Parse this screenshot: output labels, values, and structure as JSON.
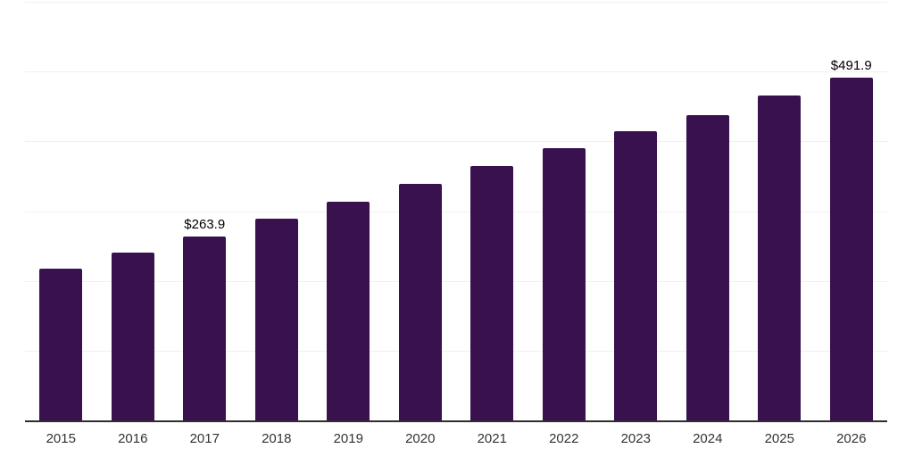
{
  "chart_data": {
    "type": "bar",
    "title": "",
    "xlabel": "",
    "ylabel": "",
    "categories": [
      "2015",
      "2016",
      "2017",
      "2018",
      "2019",
      "2020",
      "2021",
      "2022",
      "2023",
      "2024",
      "2025",
      "2026"
    ],
    "values": [
      216.9,
      240.3,
      263.9,
      289.5,
      313.9,
      339.1,
      364.8,
      389.9,
      414.0,
      437.9,
      465.2,
      491.9
    ],
    "data_labels": [
      "",
      "",
      "$263.9",
      "",
      "",
      "",
      "",
      "",
      "",
      "",
      "",
      "$491.9"
    ],
    "ylim": [
      0,
      600
    ],
    "gridline_values": [
      100,
      200,
      300,
      400,
      500,
      600
    ],
    "grid": "horizontal",
    "legend": "none",
    "colors": {
      "bar": "#39114F",
      "axis_line": "#2d2d2d",
      "gridline": "#f0f0f0",
      "value_label": "#000000",
      "tick_label": "#333333",
      "background": "#ffffff"
    }
  }
}
